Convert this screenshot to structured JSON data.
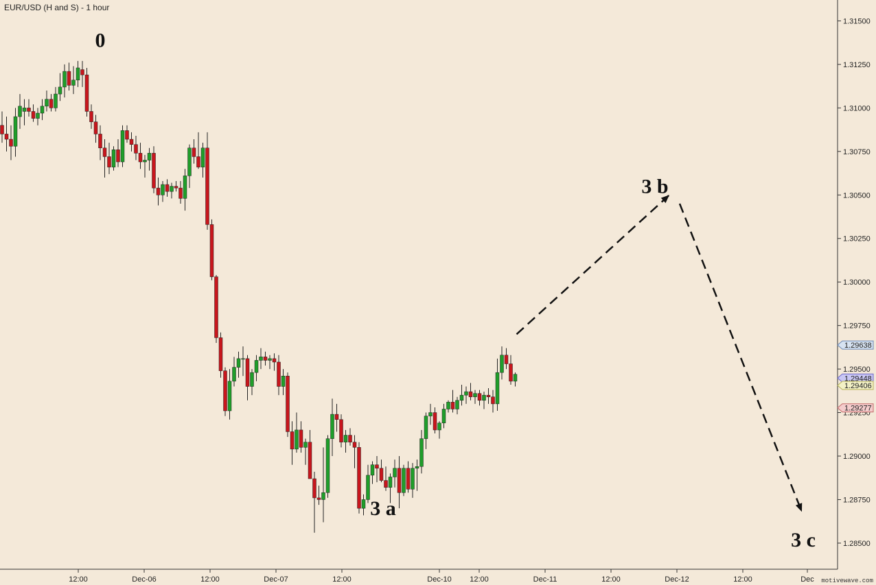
{
  "chart_data": {
    "type": "candlestick",
    "title": "EUR/USD (H and S) - 1 hour",
    "y_axis": {
      "range": [
        1.2835,
        1.3162
      ],
      "ticks": [
        "1.31500",
        "1.31250",
        "1.31000",
        "1.30750",
        "1.30500",
        "1.30250",
        "1.30000",
        "1.29750",
        "1.29500",
        "1.29250",
        "1.29000",
        "1.28750",
        "1.28500"
      ]
    },
    "x_axis": {
      "tick_labels": [
        "12:00",
        "Dec-06",
        "12:00",
        "Dec-07",
        "12:00",
        "Dec-10",
        "12:00",
        "Dec-11",
        "12:00",
        "Dec-12",
        "12:00",
        "Dec"
      ]
    },
    "price_tags": [
      {
        "label": "1.29638",
        "value": 1.29638,
        "color": "#d7e3f1",
        "border": "#6a87b5"
      },
      {
        "label": "1.29448",
        "value": 1.29448,
        "color": "#c9c7f4",
        "border": "#6d67c9"
      },
      {
        "label": "1.29406",
        "value": 1.29406,
        "color": "#f3f1c6",
        "border": "#b7b45a"
      },
      {
        "label": "1.29277",
        "value": 1.29277,
        "color": "#f4cccc",
        "border": "#c46a6a"
      }
    ],
    "wave_labels": [
      {
        "text": "0",
        "x_index": 18,
        "price": 1.3139
      },
      {
        "text": "3 a",
        "x_index": 93,
        "price": 1.287
      },
      {
        "text": "3 b",
        "date_pos": "projection-1",
        "price": 1.3055
      },
      {
        "text": "3 c",
        "date_pos": "projection-2",
        "price": 1.2852
      }
    ],
    "projection": [
      {
        "from_price": 1.297,
        "to_price": 1.305,
        "arrow": true
      },
      {
        "from_price": 1.3045,
        "to_price": 1.2868,
        "arrow": true
      }
    ],
    "colors": {
      "up": "#1f9e2a",
      "down": "#c8161d",
      "wick": "#222222",
      "background": "#f4e9d9"
    },
    "candles": [
      [
        1.309,
        1.3098,
        1.308,
        1.3085
      ],
      [
        1.3085,
        1.3095,
        1.3075,
        1.3082
      ],
      [
        1.3082,
        1.309,
        1.307,
        1.3078
      ],
      [
        1.3078,
        1.31,
        1.3072,
        1.3095
      ],
      [
        1.3095,
        1.3108,
        1.3088,
        1.3101
      ],
      [
        1.3098,
        1.3105,
        1.309,
        1.31
      ],
      [
        1.31,
        1.3105,
        1.3095,
        1.3098
      ],
      [
        1.3098,
        1.3102,
        1.3092,
        1.3094
      ],
      [
        1.3094,
        1.31,
        1.309,
        1.3097
      ],
      [
        1.3097,
        1.3105,
        1.3093,
        1.3101
      ],
      [
        1.3101,
        1.311,
        1.3098,
        1.3105
      ],
      [
        1.3105,
        1.3108,
        1.3098,
        1.31
      ],
      [
        1.31,
        1.3112,
        1.3098,
        1.3108
      ],
      [
        1.3108,
        1.312,
        1.3104,
        1.3112
      ],
      [
        1.3112,
        1.3125,
        1.3106,
        1.3121
      ],
      [
        1.3121,
        1.3126,
        1.311,
        1.3113
      ],
      [
        1.3113,
        1.3124,
        1.3108,
        1.3116
      ],
      [
        1.3116,
        1.3127,
        1.3112,
        1.3123
      ],
      [
        1.3122,
        1.3127,
        1.3112,
        1.3119
      ],
      [
        1.3119,
        1.3123,
        1.3095,
        1.3098
      ],
      [
        1.3098,
        1.3102,
        1.3088,
        1.3092
      ],
      [
        1.3092,
        1.3096,
        1.308,
        1.3085
      ],
      [
        1.3085,
        1.309,
        1.307,
        1.3077
      ],
      [
        1.3077,
        1.3082,
        1.306,
        1.3072
      ],
      [
        1.3072,
        1.308,
        1.3062,
        1.3066
      ],
      [
        1.3066,
        1.3078,
        1.3064,
        1.3076
      ],
      [
        1.3076,
        1.3082,
        1.3066,
        1.3069
      ],
      [
        1.3069,
        1.309,
        1.3066,
        1.3087
      ],
      [
        1.3087,
        1.309,
        1.308,
        1.3082
      ],
      [
        1.3082,
        1.3086,
        1.3075,
        1.3079
      ],
      [
        1.3079,
        1.3084,
        1.307,
        1.3074
      ],
      [
        1.3074,
        1.308,
        1.3065,
        1.3069
      ],
      [
        1.3069,
        1.3073,
        1.306,
        1.307
      ],
      [
        1.307,
        1.3077,
        1.3064,
        1.3074
      ],
      [
        1.3074,
        1.3078,
        1.3051,
        1.3054
      ],
      [
        1.3054,
        1.306,
        1.3044,
        1.305
      ],
      [
        1.305,
        1.3058,
        1.3046,
        1.3056
      ],
      [
        1.3056,
        1.3059,
        1.3049,
        1.3052
      ],
      [
        1.3052,
        1.3057,
        1.3048,
        1.3055
      ],
      [
        1.3055,
        1.3058,
        1.3052,
        1.3054
      ],
      [
        1.3054,
        1.3058,
        1.3045,
        1.3048
      ],
      [
        1.3048,
        1.3065,
        1.3041,
        1.3061
      ],
      [
        1.3061,
        1.3079,
        1.3054,
        1.3077
      ],
      [
        1.3077,
        1.3082,
        1.3068,
        1.3072
      ],
      [
        1.3072,
        1.3086,
        1.3065,
        1.3066
      ],
      [
        1.3066,
        1.308,
        1.306,
        1.3077
      ],
      [
        1.3077,
        1.3086,
        1.303,
        1.3033
      ],
      [
        1.3033,
        1.3036,
        1.3001,
        1.3003
      ],
      [
        1.3003,
        1.3004,
        1.2965,
        1.2968
      ],
      [
        1.2968,
        1.2971,
        1.2945,
        1.2949
      ],
      [
        1.2949,
        1.2951,
        1.2923,
        1.2926
      ],
      [
        1.2926,
        1.295,
        1.2921,
        1.2943
      ],
      [
        1.2943,
        1.2957,
        1.294,
        1.2951
      ],
      [
        1.2951,
        1.296,
        1.2945,
        1.2956
      ],
      [
        1.2956,
        1.2963,
        1.2946,
        1.2956
      ],
      [
        1.2956,
        1.2958,
        1.2932,
        1.294
      ],
      [
        1.294,
        1.295,
        1.2935,
        1.2948
      ],
      [
        1.2948,
        1.2958,
        1.2943,
        1.2955
      ],
      [
        1.2955,
        1.2962,
        1.295,
        1.2957
      ],
      [
        1.2957,
        1.296,
        1.2952,
        1.2955
      ],
      [
        1.2955,
        1.2958,
        1.295,
        1.2956
      ],
      [
        1.2956,
        1.2959,
        1.2949,
        1.2954
      ],
      [
        1.2954,
        1.2958,
        1.2935,
        1.294
      ],
      [
        1.294,
        1.295,
        1.2935,
        1.2946
      ],
      [
        1.2946,
        1.2948,
        1.2911,
        1.2914
      ],
      [
        1.2914,
        1.292,
        1.2895,
        1.2904
      ],
      [
        1.2904,
        1.2925,
        1.2902,
        1.2915
      ],
      [
        1.2915,
        1.292,
        1.2902,
        1.2905
      ],
      [
        1.2905,
        1.291,
        1.2895,
        1.2908
      ],
      [
        1.2908,
        1.2915,
        1.2887,
        1.2887
      ],
      [
        1.2887,
        1.2891,
        1.2856,
        1.2876
      ],
      [
        1.2876,
        1.2883,
        1.2872,
        1.2875
      ],
      [
        1.2875,
        1.2905,
        1.2862,
        1.2879
      ],
      [
        1.2879,
        1.2912,
        1.2876,
        1.291
      ],
      [
        1.291,
        1.2933,
        1.29,
        1.2924
      ],
      [
        1.2924,
        1.293,
        1.2914,
        1.2921
      ],
      [
        1.2921,
        1.2924,
        1.2905,
        1.2908
      ],
      [
        1.2908,
        1.2915,
        1.2902,
        1.2912
      ],
      [
        1.2912,
        1.2916,
        1.2906,
        1.2908
      ],
      [
        1.2908,
        1.2912,
        1.2893,
        1.2905
      ],
      [
        1.2905,
        1.2908,
        1.2867,
        1.287
      ],
      [
        1.287,
        1.2878,
        1.2866,
        1.2875
      ],
      [
        1.2875,
        1.2895,
        1.2873,
        1.2889
      ],
      [
        1.2889,
        1.2897,
        1.2884,
        1.2895
      ],
      [
        1.2895,
        1.29,
        1.2885,
        1.2893
      ],
      [
        1.2893,
        1.2898,
        1.2885,
        1.2886
      ],
      [
        1.2886,
        1.2894,
        1.288,
        1.2882
      ],
      [
        1.2882,
        1.289,
        1.2873,
        1.2888
      ],
      [
        1.2888,
        1.2898,
        1.2882,
        1.2893
      ],
      [
        1.2893,
        1.29,
        1.287,
        1.2879
      ],
      [
        1.2879,
        1.2895,
        1.2877,
        1.2893
      ],
      [
        1.2893,
        1.2897,
        1.2879,
        1.2881
      ],
      [
        1.2881,
        1.2896,
        1.2876,
        1.2893
      ],
      [
        1.2893,
        1.2898,
        1.288,
        1.2894
      ],
      [
        1.2894,
        1.2915,
        1.289,
        1.291
      ],
      [
        1.291,
        1.2925,
        1.2904,
        1.2923
      ],
      [
        1.2923,
        1.293,
        1.2918,
        1.2925
      ],
      [
        1.2925,
        1.2928,
        1.2913,
        1.2915
      ],
      [
        1.2915,
        1.292,
        1.291,
        1.2919
      ],
      [
        1.2919,
        1.293,
        1.2916,
        1.2927
      ],
      [
        1.2927,
        1.2932,
        1.2925,
        1.2931
      ],
      [
        1.2931,
        1.2938,
        1.2925,
        1.2927
      ],
      [
        1.2927,
        1.2934,
        1.2924,
        1.2932
      ],
      [
        1.2932,
        1.2941,
        1.2929,
        1.2935
      ],
      [
        1.2935,
        1.294,
        1.293,
        1.2937
      ],
      [
        1.2937,
        1.2942,
        1.2932,
        1.2934
      ],
      [
        1.2934,
        1.2938,
        1.293,
        1.2936
      ],
      [
        1.2936,
        1.2938,
        1.2929,
        1.2932
      ],
      [
        1.2932,
        1.2937,
        1.2927,
        1.2935
      ],
      [
        1.2935,
        1.2939,
        1.293,
        1.2934
      ],
      [
        1.2934,
        1.2938,
        1.2925,
        1.293
      ],
      [
        1.293,
        1.2956,
        1.2926,
        1.2948
      ],
      [
        1.2948,
        1.2963,
        1.2944,
        1.2958
      ],
      [
        1.2958,
        1.2962,
        1.295,
        1.2953
      ],
      [
        1.2953,
        1.2958,
        1.2941,
        1.2943
      ],
      [
        1.2943,
        1.2948,
        1.294,
        1.2947
      ]
    ]
  }
}
